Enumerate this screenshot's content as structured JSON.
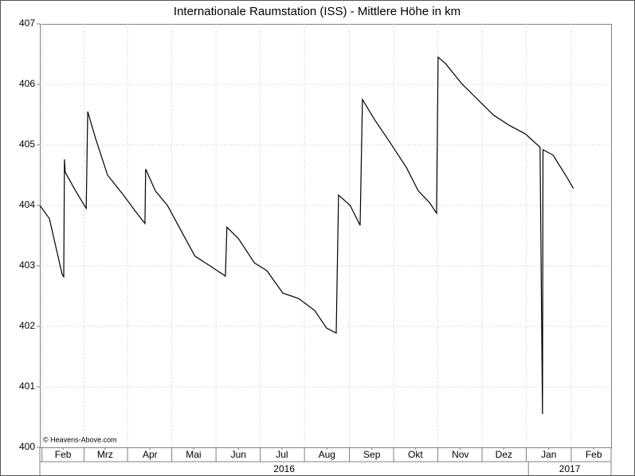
{
  "chart_data": {
    "type": "line",
    "title": "Internationale Raumstation (ISS) - Mittlere Höhe in km",
    "watermark": "© Heavens-Above.com",
    "x": [
      -2,
      4.6,
      9,
      13.4,
      14.5,
      15,
      15.5,
      22.7,
      30,
      31,
      36.5,
      44.7,
      55.7,
      64,
      70.5,
      71,
      77.7,
      86,
      97,
      105,
      116,
      126,
      127,
      135,
      146,
      154.6,
      165.6,
      176.6,
      187.6,
      195.8,
      202.4,
      204,
      212,
      218.9,
      220.5,
      228.8,
      239.8,
      250.7,
      259,
      267,
      271.6,
      272.7,
      278,
      289,
      300,
      311,
      322,
      333,
      343,
      344.7,
      345,
      352,
      360.6,
      366
    ],
    "values": [
      404.0,
      403.78,
      403.32,
      402.86,
      402.82,
      404.76,
      404.55,
      404.24,
      403.95,
      405.55,
      405.1,
      404.5,
      404.17,
      403.9,
      403.7,
      404.6,
      404.24,
      404.0,
      403.51,
      403.16,
      402.99,
      402.83,
      403.64,
      403.45,
      403.05,
      402.92,
      402.55,
      402.46,
      402.26,
      401.97,
      401.89,
      404.17,
      404.0,
      403.67,
      405.75,
      405.42,
      405.03,
      404.63,
      404.24,
      404.04,
      403.87,
      406.45,
      406.34,
      406.01,
      405.75,
      405.49,
      405.32,
      405.18,
      404.96,
      400.55,
      404.92,
      404.83,
      404.5,
      404.28
    ],
    "color": "#000000",
    "xlim": [
      -2,
      392
    ],
    "xticks": [
      {
        "value": 14,
        "label": "Feb"
      },
      {
        "value": 43,
        "label": "Mrz"
      },
      {
        "value": 74,
        "label": "Apr"
      },
      {
        "value": 104,
        "label": "Mai"
      },
      {
        "value": 135,
        "label": "Jun"
      },
      {
        "value": 165,
        "label": "Jul"
      },
      {
        "value": 196,
        "label": "Aug"
      },
      {
        "value": 227,
        "label": "Sep"
      },
      {
        "value": 257,
        "label": "Okt"
      },
      {
        "value": 288,
        "label": "Nov"
      },
      {
        "value": 318,
        "label": "Dez"
      },
      {
        "value": 349,
        "label": "Jan"
      },
      {
        "value": 380,
        "label": "Feb"
      }
    ],
    "x_groups": [
      {
        "label": "2016",
        "range": [
          -2,
          335
        ]
      },
      {
        "label": "2017",
        "range": [
          335,
          392
        ]
      }
    ],
    "ylim": [
      400,
      407
    ],
    "yticks": [
      400,
      401,
      402,
      403,
      404,
      405,
      406,
      407
    ],
    "grid": true
  }
}
